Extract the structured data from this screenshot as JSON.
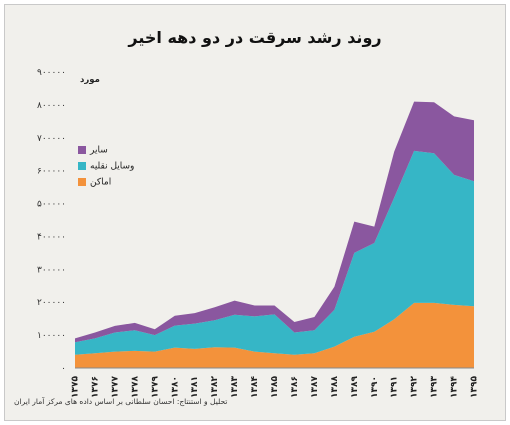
{
  "chart_data": {
    "type": "area",
    "stacked": true,
    "title": "روند رشد سرقت در دو دهه اخیر",
    "ylabel": "مورد",
    "ylim": [
      0,
      900000
    ],
    "yticks": [
      {
        "v": 0,
        "label": "۰"
      },
      {
        "v": 100000,
        "label": "۱۰۰۰۰۰"
      },
      {
        "v": 200000,
        "label": "۲۰۰۰۰۰"
      },
      {
        "v": 300000,
        "label": "۳۰۰۰۰۰"
      },
      {
        "v": 400000,
        "label": "۴۰۰۰۰۰"
      },
      {
        "v": 500000,
        "label": "۵۰۰۰۰۰"
      },
      {
        "v": 600000,
        "label": "۶۰۰۰۰۰"
      },
      {
        "v": 700000,
        "label": "۷۰۰۰۰۰"
      },
      {
        "v": 800000,
        "label": "۸۰۰۰۰۰"
      },
      {
        "v": 900000,
        "label": "۹۰۰۰۰۰"
      }
    ],
    "categories": [
      "۱۳۷۵",
      "۱۳۷۶",
      "۱۳۷۷",
      "۱۳۷۸",
      "۱۳۷۹",
      "۱۳۸۰",
      "۱۳۸۱",
      "۱۳۸۲",
      "۱۳۸۳",
      "۱۳۸۴",
      "۱۳۸۵",
      "۱۳۸۶",
      "۱۳۸۷",
      "۱۳۸۸",
      "۱۳۸۹",
      "۱۳۹۰",
      "۱۳۹۱",
      "۱۳۹۲",
      "۱۳۹۳",
      "۱۳۹۴",
      "۱۳۹۵"
    ],
    "series": [
      {
        "name": "اماکن",
        "color": "#f3923b",
        "values": [
          40000,
          45000,
          50000,
          52000,
          50000,
          62000,
          58000,
          63000,
          62000,
          50000,
          45000,
          40000,
          45000,
          65000,
          95000,
          110000,
          148000,
          198000,
          198000,
          192000,
          188000
        ]
      },
      {
        "name": "وسایل نقلیه",
        "color": "#36b6c6",
        "values": [
          38000,
          45000,
          58000,
          63000,
          50000,
          67000,
          77000,
          82000,
          100000,
          107000,
          118000,
          68000,
          70000,
          112000,
          255000,
          270000,
          370000,
          462000,
          455000,
          395000,
          380000
        ]
      },
      {
        "name": "سایر",
        "color": "#8a579f",
        "values": [
          12000,
          18000,
          20000,
          22000,
          18000,
          30000,
          32000,
          40000,
          43000,
          33000,
          27000,
          32000,
          40000,
          70000,
          95000,
          50000,
          140000,
          150000,
          155000,
          178000,
          185000
        ]
      }
    ],
    "legend_position": "left",
    "grid": false
  },
  "footer": {
    "credit": "تحلیل و استنتاج: احسان سلطانی بر اساس داده های مرکز آمار ایران"
  }
}
